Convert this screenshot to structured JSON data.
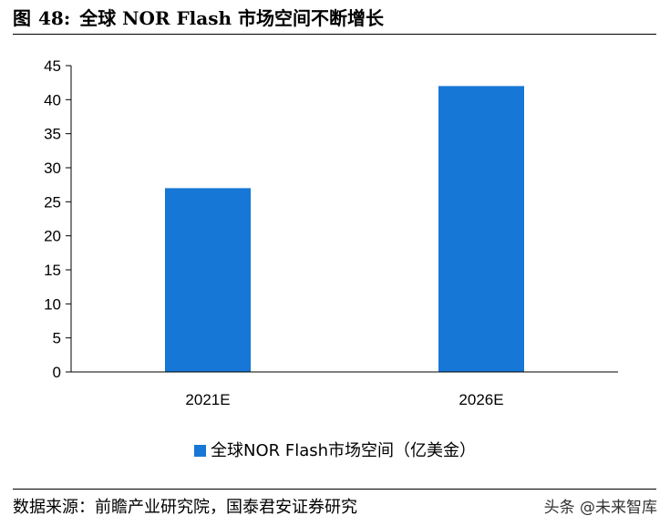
{
  "figure": {
    "label": "图",
    "number": "48:",
    "title": "全球 NOR Flash 市场空间不断增长"
  },
  "chart_data": {
    "type": "bar",
    "categories": [
      "2021E",
      "2026E"
    ],
    "series": [
      {
        "name": "全球NOR Flash市场空间（亿美金）",
        "values": [
          27,
          42
        ]
      }
    ],
    "ylim": [
      0,
      45
    ],
    "yticks": [
      0,
      5,
      10,
      15,
      20,
      25,
      30,
      35,
      40,
      45
    ],
    "bar_color": "#1677d6",
    "grid": false,
    "legend_position": "bottom"
  },
  "source": "数据来源：前瞻产业研究院，国泰君安证券研究",
  "watermark": "头条 @未来智库"
}
